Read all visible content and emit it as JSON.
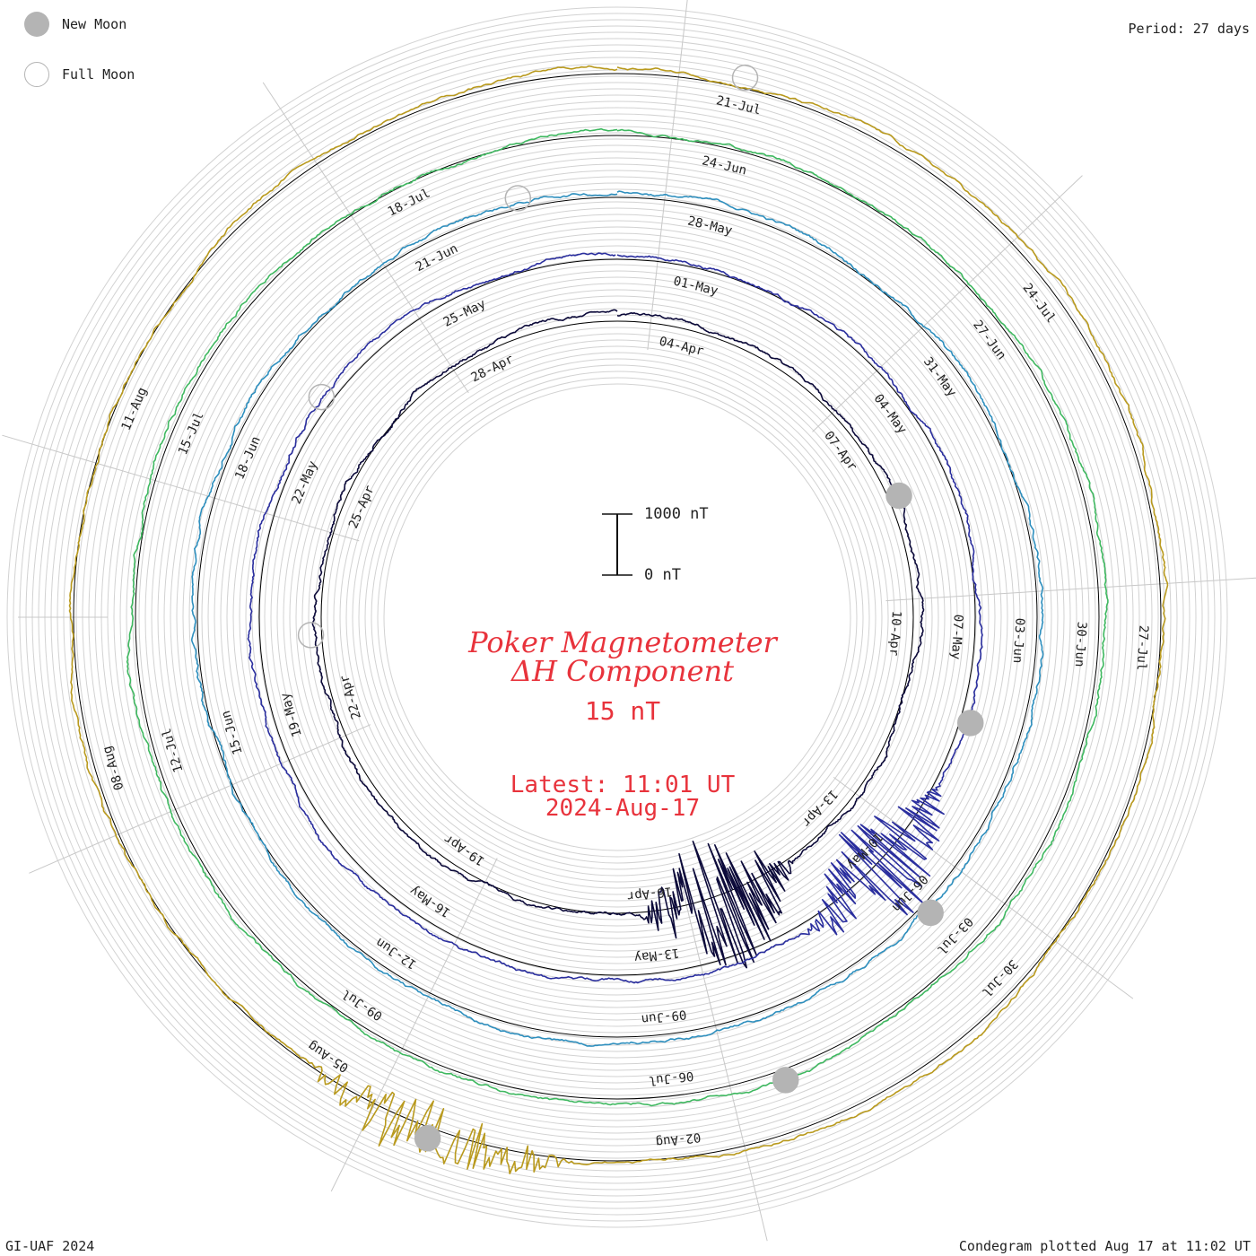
{
  "legend": {
    "new_moon": "New Moon",
    "full_moon": "Full Moon"
  },
  "period": "Period: 27 days",
  "title": {
    "line1": "Poker Magnetometer",
    "line2": "ΔH Component",
    "unit": "15 nT"
  },
  "latest": {
    "line1": "Latest: 11:01 UT",
    "line2": "2024-Aug-17"
  },
  "scale": {
    "top_label": "1000 nT",
    "bottom_label": "0 nT"
  },
  "footer": {
    "left": "GI-UAF 2024",
    "right": "Condegram plotted Aug 17 at 11:02 UT"
  },
  "chart_data": {
    "type": "condegram",
    "period_days": 27,
    "start_date": "2024-04-03",
    "end": "2024-08-17 11:01 UT",
    "rotations": [
      {
        "index": 0,
        "color": "#0c0a3a",
        "date_labels": [
          "04-Apr",
          "07-Apr",
          "10-Apr",
          "13-Apr",
          "16-Apr",
          "19-Apr",
          "22-Apr",
          "25-Apr",
          "28-Apr"
        ]
      },
      {
        "index": 1,
        "color": "#2a2e9e",
        "date_labels": [
          "01-May",
          "04-May",
          "07-May",
          "10-May",
          "13-May",
          "16-May",
          "19-May",
          "22-May",
          "25-May"
        ]
      },
      {
        "index": 2,
        "color": "#2e8fbe",
        "date_labels": [
          "28-May",
          "31-May",
          "03-Jun",
          "06-Jun",
          "09-Jun",
          "12-Jun",
          "15-Jun",
          "18-Jun",
          "21-Jun"
        ]
      },
      {
        "index": 3,
        "color": "#3fb860",
        "date_labels": [
          "24-Jun",
          "27-Jun",
          "30-Jun",
          "03-Jul",
          "06-Jul",
          "09-Jul",
          "12-Jul",
          "15-Jul",
          "18-Jul"
        ]
      },
      {
        "index": 4,
        "color": "#b99a1e",
        "date_labels": [
          "21-Jul",
          "24-Jul",
          "27-Jul",
          "30-Jul",
          "02-Aug",
          "05-Aug",
          "08-Aug",
          "11-Aug"
        ]
      }
    ],
    "moon_phases": [
      {
        "phase": "new",
        "date": "2024-04-08"
      },
      {
        "phase": "full",
        "date": "2024-04-23"
      },
      {
        "phase": "new",
        "date": "2024-05-08"
      },
      {
        "phase": "full",
        "date": "2024-05-23"
      },
      {
        "phase": "new",
        "date": "2024-06-06"
      },
      {
        "phase": "full",
        "date": "2024-06-22"
      },
      {
        "phase": "new",
        "date": "2024-07-05"
      },
      {
        "phase": "full",
        "date": "2024-07-21"
      },
      {
        "phase": "new",
        "date": "2024-08-04"
      }
    ],
    "disturbances": [
      {
        "date": "2024-04-15",
        "max_delta_nT": 1400
      },
      {
        "date": "2024-05-10",
        "max_delta_nT": 1100
      },
      {
        "date": "2024-08-04",
        "max_delta_nT": 700
      }
    ],
    "scale_bar_nT": [
      0,
      1000
    ]
  }
}
